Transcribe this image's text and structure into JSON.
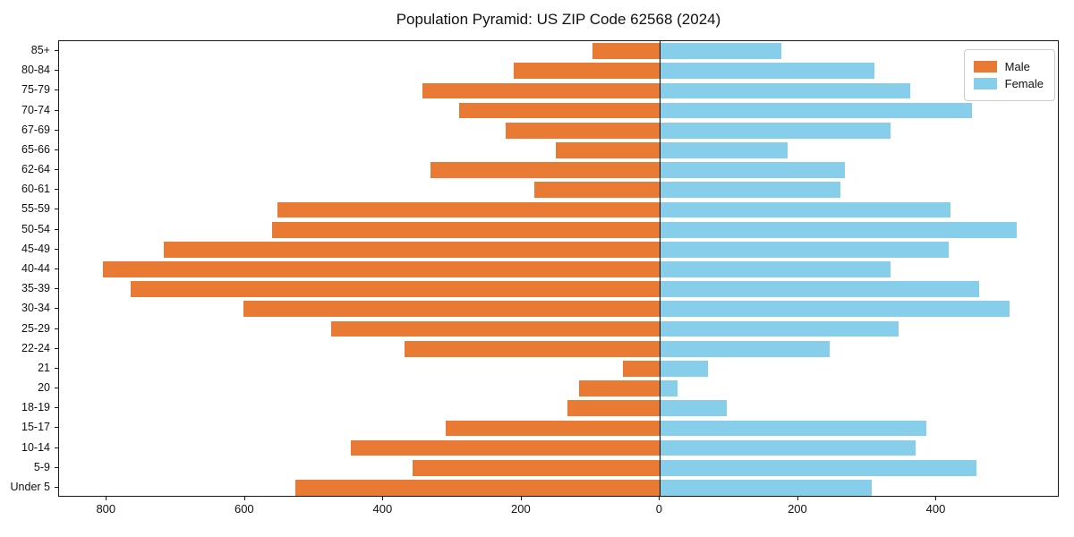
{
  "title": "Population Pyramid: US ZIP Code 62568 (2024)",
  "legend": {
    "male_label": "Male",
    "female_label": "Female"
  },
  "colors": {
    "male": "#E87A33",
    "female": "#87CEEB",
    "axis": "#1a1a1a",
    "zero_line": "#000000",
    "background": "#ffffff"
  },
  "chart_data": {
    "type": "bar",
    "orientation": "horizontal-population-pyramid",
    "title": "Population Pyramid: US ZIP Code 62568 (2024)",
    "xlabel": "",
    "ylabel": "",
    "grid": false,
    "legend_position": "upper right",
    "categories": [
      "85+",
      "80-84",
      "75-79",
      "70-74",
      "67-69",
      "65-66",
      "62-64",
      "60-61",
      "55-59",
      "50-54",
      "45-49",
      "40-44",
      "35-39",
      "30-34",
      "25-29",
      "22-24",
      "21",
      "20",
      "18-19",
      "15-17",
      "10-14",
      "5-9",
      "Under 5"
    ],
    "series": [
      {
        "name": "Male",
        "side": "left",
        "color": "#E87A33",
        "values": [
          98,
          212,
          343,
          290,
          223,
          151,
          332,
          182,
          553,
          561,
          718,
          805,
          765,
          602,
          475,
          369,
          53,
          117,
          134,
          310,
          447,
          358,
          527
        ]
      },
      {
        "name": "Female",
        "side": "right",
        "color": "#87CEEB",
        "values": [
          175,
          310,
          362,
          451,
          334,
          184,
          268,
          261,
          420,
          516,
          418,
          334,
          462,
          505,
          345,
          245,
          70,
          25,
          97,
          385,
          370,
          458,
          306
        ]
      }
    ],
    "xlim": [
      -869,
      578
    ],
    "x_ticks": [
      {
        "value": -800,
        "label": "800"
      },
      {
        "value": -600,
        "label": "600"
      },
      {
        "value": -400,
        "label": "400"
      },
      {
        "value": -200,
        "label": "200"
      },
      {
        "value": 0,
        "label": "0"
      },
      {
        "value": 200,
        "label": "200"
      },
      {
        "value": 400,
        "label": "400"
      }
    ],
    "bar_fraction": 0.8
  }
}
